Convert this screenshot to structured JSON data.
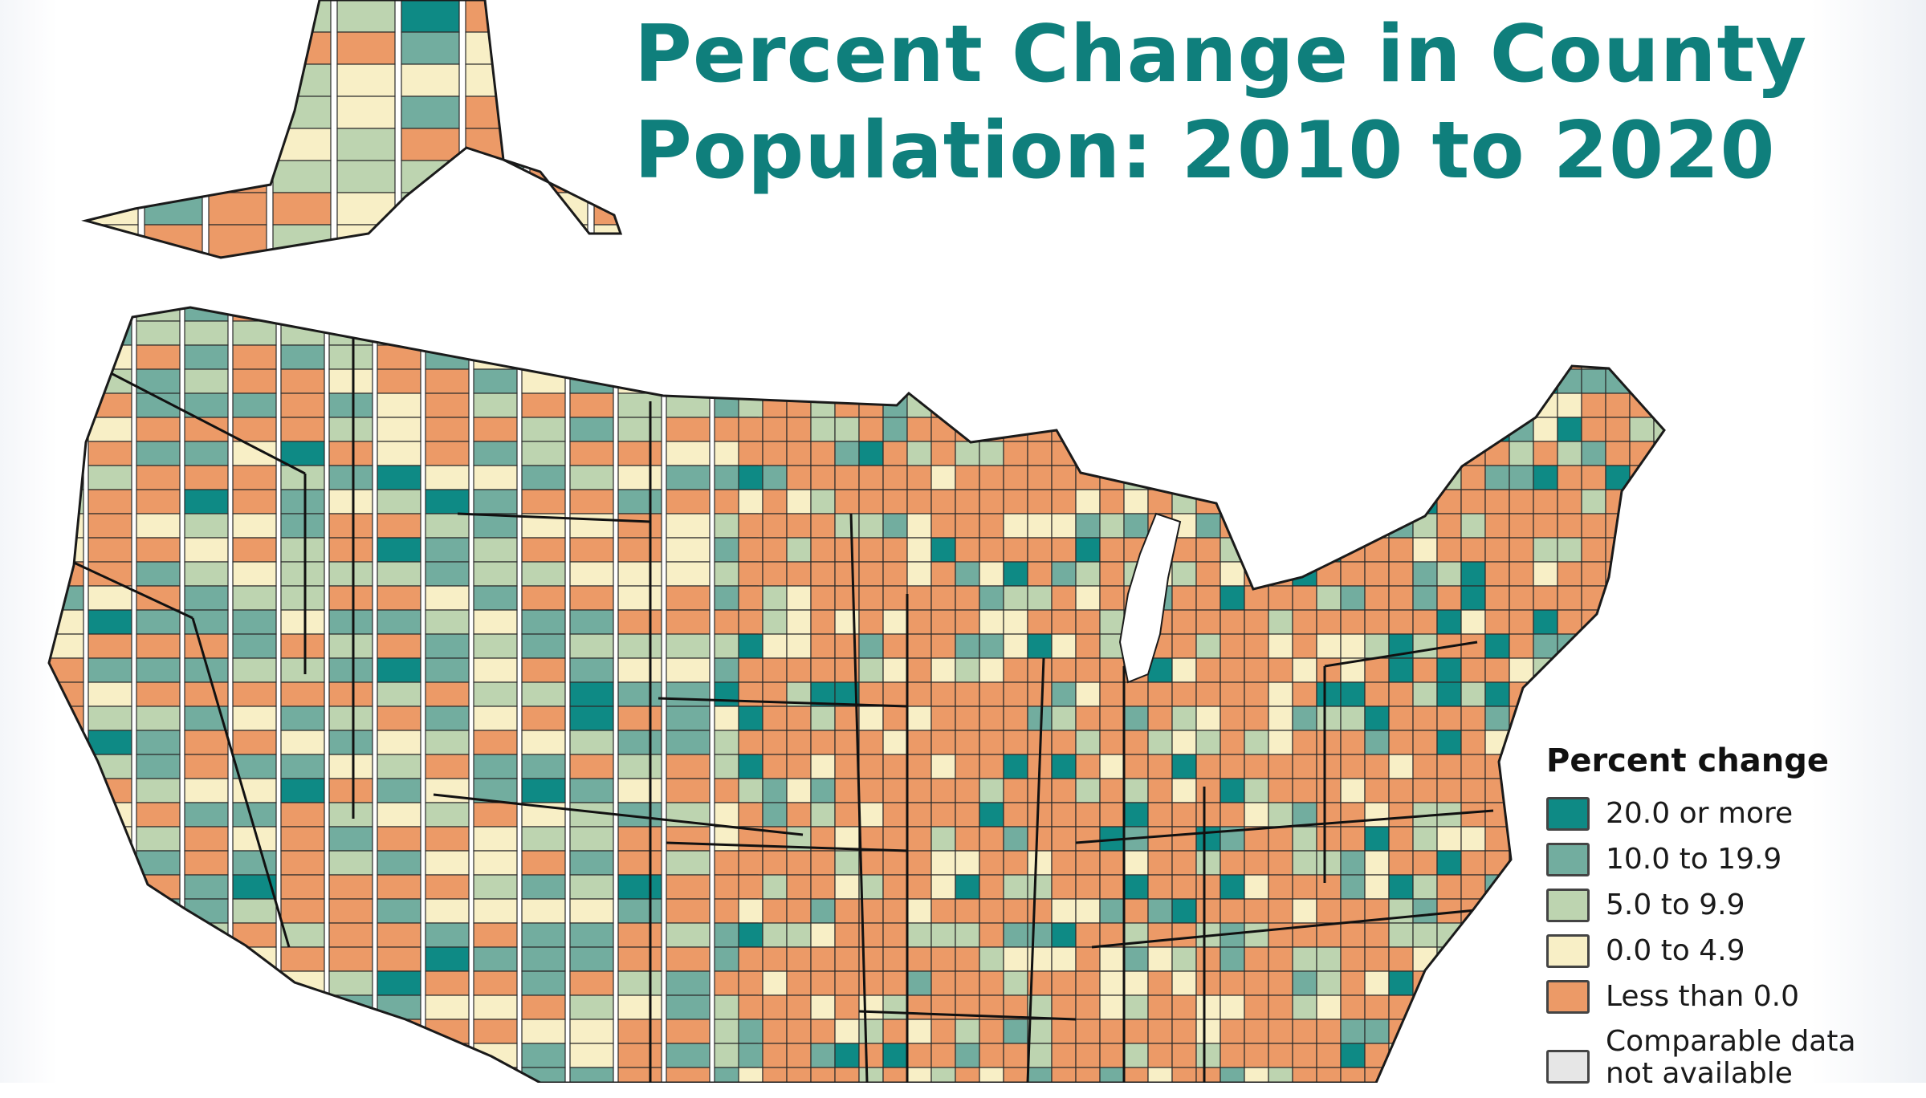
{
  "title": {
    "line1": "Percent Change in County",
    "line2": "Population: 2010 to 2020"
  },
  "legend": {
    "title": "Percent change",
    "items": [
      {
        "label": "20.0 or more",
        "color": "#0e8a85"
      },
      {
        "label": "10.0 to 19.9",
        "color": "#72ad9f"
      },
      {
        "label": "5.0 to 9.9",
        "color": "#bdd4b0"
      },
      {
        "label": "0.0 to 4.9",
        "color": "#f8efc6"
      },
      {
        "label": "Less than 0.0",
        "color": "#ec9a67"
      },
      {
        "label": "Comparable data not available",
        "color": "#e6e6e6"
      }
    ]
  },
  "colors": {
    "title": "#0f7f7c",
    "border": "#2b2b2b"
  }
}
